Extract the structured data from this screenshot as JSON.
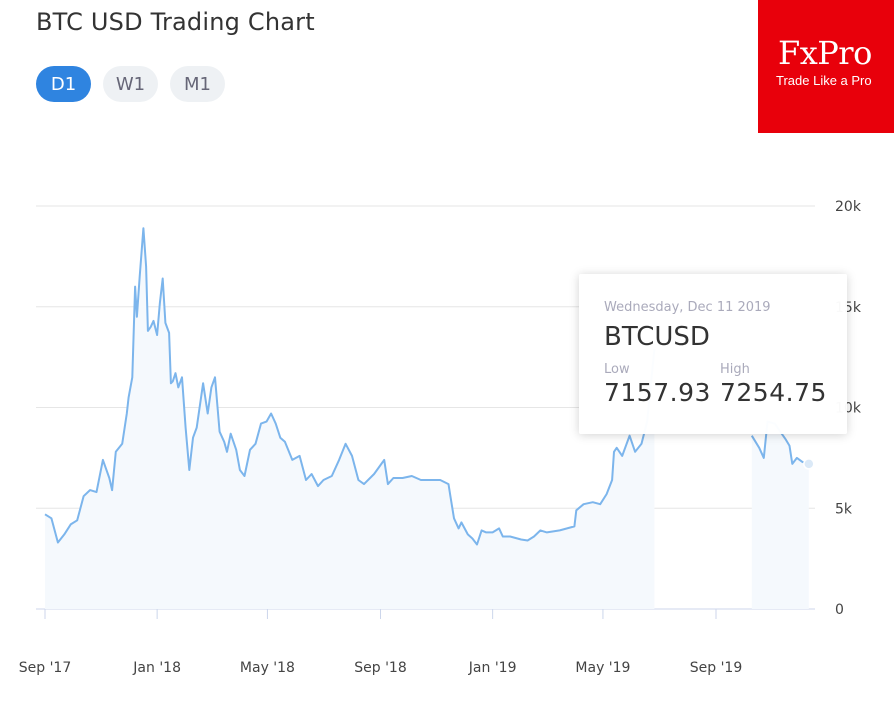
{
  "header": {
    "title": "BTC USD Trading Chart"
  },
  "tabs": [
    {
      "label": "D1",
      "active": true
    },
    {
      "label": "W1",
      "active": false
    },
    {
      "label": "M1",
      "active": false
    }
  ],
  "logo": {
    "brand": "FxPro",
    "tagline": "Trade Like a Pro",
    "color": "#e8000b"
  },
  "tooltip": {
    "date": "Wednesday, Dec 11 2019",
    "symbol": "BTCUSD",
    "low_label": "Low",
    "high_label": "High",
    "low": "7157.93",
    "high": "7254.75"
  },
  "colors": {
    "line": "#7cb5ec",
    "grid": "#e6e6e6",
    "active_tab": "#2f84e0"
  },
  "chart_data": {
    "type": "line",
    "title": "",
    "xlabel": "",
    "ylabel": "",
    "ylim": [
      0,
      20000
    ],
    "y_ticks": [
      0,
      5000,
      10000,
      15000,
      20000
    ],
    "y_tick_labels": [
      "0",
      "5k",
      "10k",
      "15k",
      "20k"
    ],
    "x_tick_labels": [
      "Sep '17",
      "Jan '18",
      "May '18",
      "Sep '18",
      "Jan '19",
      "May '19",
      "Sep '19"
    ],
    "x_tick_dates": [
      "2017-09-01",
      "2018-01-01",
      "2018-05-01",
      "2018-09-01",
      "2019-01-01",
      "2019-05-01",
      "2019-09-01"
    ],
    "grid": true,
    "legend": "none",
    "series": [
      {
        "points": [
          [
            "2017-09-01",
            4700
          ],
          [
            "2017-09-08",
            4500
          ],
          [
            "2017-09-15",
            3300
          ],
          [
            "2017-09-22",
            3700
          ],
          [
            "2017-09-29",
            4200
          ],
          [
            "2017-10-06",
            4400
          ],
          [
            "2017-10-13",
            5600
          ],
          [
            "2017-10-20",
            5900
          ],
          [
            "2017-10-27",
            5800
          ],
          [
            "2017-11-03",
            7400
          ],
          [
            "2017-11-10",
            6500
          ],
          [
            "2017-11-13",
            5900
          ],
          [
            "2017-11-17",
            7800
          ],
          [
            "2017-11-24",
            8200
          ],
          [
            "2017-11-29",
            9700
          ],
          [
            "2017-12-01",
            10500
          ],
          [
            "2017-12-05",
            11500
          ],
          [
            "2017-12-08",
            16000
          ],
          [
            "2017-12-10",
            14500
          ],
          [
            "2017-12-13",
            16500
          ],
          [
            "2017-12-17",
            18900
          ],
          [
            "2017-12-20",
            17000
          ],
          [
            "2017-12-22",
            13800
          ],
          [
            "2017-12-25",
            14000
          ],
          [
            "2017-12-28",
            14300
          ],
          [
            "2018-01-01",
            13600
          ],
          [
            "2018-01-04",
            15200
          ],
          [
            "2018-01-07",
            16400
          ],
          [
            "2018-01-10",
            14200
          ],
          [
            "2018-01-14",
            13700
          ],
          [
            "2018-01-16",
            11200
          ],
          [
            "2018-01-18",
            11300
          ],
          [
            "2018-01-21",
            11700
          ],
          [
            "2018-01-24",
            11000
          ],
          [
            "2018-01-28",
            11500
          ],
          [
            "2018-02-01",
            9000
          ],
          [
            "2018-02-05",
            6900
          ],
          [
            "2018-02-09",
            8500
          ],
          [
            "2018-02-13",
            9000
          ],
          [
            "2018-02-20",
            11200
          ],
          [
            "2018-02-25",
            9700
          ],
          [
            "2018-03-01",
            11000
          ],
          [
            "2018-03-05",
            11500
          ],
          [
            "2018-03-10",
            8800
          ],
          [
            "2018-03-15",
            8300
          ],
          [
            "2018-03-18",
            7800
          ],
          [
            "2018-03-22",
            8700
          ],
          [
            "2018-03-28",
            7900
          ],
          [
            "2018-04-01",
            6900
          ],
          [
            "2018-04-06",
            6600
          ],
          [
            "2018-04-12",
            7900
          ],
          [
            "2018-04-18",
            8200
          ],
          [
            "2018-04-24",
            9200
          ],
          [
            "2018-04-30",
            9300
          ],
          [
            "2018-05-05",
            9700
          ],
          [
            "2018-05-10",
            9200
          ],
          [
            "2018-05-15",
            8500
          ],
          [
            "2018-05-20",
            8300
          ],
          [
            "2018-05-28",
            7400
          ],
          [
            "2018-06-05",
            7600
          ],
          [
            "2018-06-12",
            6400
          ],
          [
            "2018-06-18",
            6700
          ],
          [
            "2018-06-25",
            6100
          ],
          [
            "2018-07-01",
            6400
          ],
          [
            "2018-07-10",
            6600
          ],
          [
            "2018-07-18",
            7400
          ],
          [
            "2018-07-25",
            8200
          ],
          [
            "2018-08-01",
            7600
          ],
          [
            "2018-08-08",
            6400
          ],
          [
            "2018-08-14",
            6200
          ],
          [
            "2018-08-25",
            6700
          ],
          [
            "2018-09-05",
            7400
          ],
          [
            "2018-09-09",
            6200
          ],
          [
            "2018-09-15",
            6500
          ],
          [
            "2018-09-25",
            6500
          ],
          [
            "2018-10-05",
            6600
          ],
          [
            "2018-10-15",
            6400
          ],
          [
            "2018-10-25",
            6400
          ],
          [
            "2018-11-05",
            6400
          ],
          [
            "2018-11-14",
            6200
          ],
          [
            "2018-11-16",
            5600
          ],
          [
            "2018-11-20",
            4500
          ],
          [
            "2018-11-25",
            4000
          ],
          [
            "2018-11-28",
            4300
          ],
          [
            "2018-12-05",
            3700
          ],
          [
            "2018-12-10",
            3500
          ],
          [
            "2018-12-15",
            3200
          ],
          [
            "2018-12-20",
            3900
          ],
          [
            "2018-12-25",
            3800
          ],
          [
            "2019-01-01",
            3800
          ],
          [
            "2019-01-08",
            4000
          ],
          [
            "2019-01-12",
            3600
          ],
          [
            "2019-01-20",
            3600
          ],
          [
            "2019-02-01",
            3450
          ],
          [
            "2019-02-08",
            3400
          ],
          [
            "2019-02-15",
            3600
          ],
          [
            "2019-02-22",
            3900
          ],
          [
            "2019-03-01",
            3800
          ],
          [
            "2019-03-15",
            3900
          ],
          [
            "2019-03-31",
            4100
          ],
          [
            "2019-04-02",
            4900
          ],
          [
            "2019-04-10",
            5200
          ],
          [
            "2019-04-20",
            5300
          ],
          [
            "2019-04-28",
            5200
          ],
          [
            "2019-05-05",
            5700
          ],
          [
            "2019-05-11",
            6400
          ],
          [
            "2019-05-13",
            7800
          ],
          [
            "2019-05-16",
            8000
          ],
          [
            "2019-05-22",
            7600
          ],
          [
            "2019-05-30",
            8600
          ],
          [
            "2019-06-05",
            7800
          ],
          [
            "2019-06-12",
            8200
          ],
          [
            "2019-06-18",
            9300
          ],
          [
            "2019-06-26",
            12900
          ]
        ]
      },
      {
        "points": [
          [
            "2019-10-10",
            8600
          ],
          [
            "2019-10-18",
            8000
          ],
          [
            "2019-10-23",
            7500
          ],
          [
            "2019-10-27",
            9300
          ],
          [
            "2019-11-04",
            9200
          ],
          [
            "2019-11-10",
            8800
          ],
          [
            "2019-11-16",
            8400
          ],
          [
            "2019-11-20",
            8100
          ],
          [
            "2019-11-23",
            7200
          ],
          [
            "2019-11-28",
            7500
          ],
          [
            "2019-12-04",
            7300
          ],
          [
            "2019-12-11",
            7200
          ]
        ]
      }
    ]
  }
}
